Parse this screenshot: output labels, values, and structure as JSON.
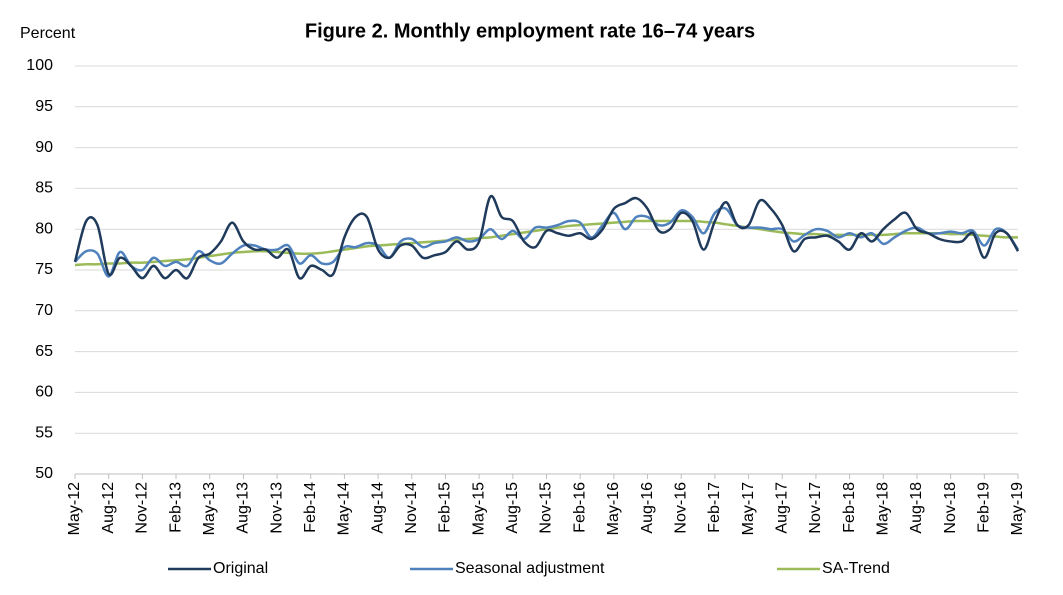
{
  "chart_data": {
    "type": "line",
    "title": "Figure 2. Monthly employment rate 16–74 years",
    "y_label": "Percent",
    "categories": [
      "May-12",
      null,
      null,
      "Aug-12",
      null,
      null,
      "Nov-12",
      null,
      null,
      "Feb-13",
      null,
      null,
      "May-13",
      null,
      null,
      "Aug-13",
      null,
      null,
      "Nov-13",
      null,
      null,
      "Feb-14",
      null,
      null,
      "May-14",
      null,
      null,
      "Aug-14",
      null,
      null,
      "Nov-14",
      null,
      null,
      "Feb-15",
      null,
      null,
      "May-15",
      null,
      null,
      "Aug-15",
      null,
      null,
      "Nov-15",
      null,
      null,
      "Feb-16",
      null,
      null,
      "May-16",
      null,
      null,
      "Aug-16",
      null,
      null,
      "Nov-16",
      null,
      null,
      "Feb-17",
      null,
      null,
      "May-17",
      null,
      null,
      "Aug-17",
      null,
      null,
      "Nov-17",
      null,
      null,
      "Feb-18",
      null,
      null,
      "May-18",
      null,
      null,
      "Aug-18",
      null,
      null,
      "Nov-18",
      null,
      null,
      "Feb-19",
      null,
      null,
      "May-19"
    ],
    "series": [
      {
        "name": "Original",
        "color": "#1f3a5a",
        "values": [
          76,
          81,
          80.5,
          74.5,
          76.5,
          75.5,
          74,
          75.5,
          74,
          75,
          74,
          76.5,
          77,
          78.5,
          80.8,
          78.5,
          77.5,
          77.5,
          76.5,
          77.5,
          74,
          75.5,
          75,
          74.5,
          79,
          81.5,
          81.5,
          77.5,
          76.5,
          78,
          78,
          76.5,
          76.8,
          77.2,
          78.5,
          77.5,
          78.5,
          84,
          81.5,
          81,
          78.5,
          77.8,
          79.8,
          79.5,
          79.2,
          79.5,
          78.8,
          80,
          82.5,
          83.2,
          83.8,
          82.5,
          79.8,
          80,
          82,
          81,
          77.5,
          81,
          83.3,
          80.5,
          80.5,
          83.5,
          82.5,
          80.5,
          77.3,
          78.8,
          79,
          79.2,
          78.5,
          77.5,
          79.5,
          78.5,
          80,
          81.2,
          82,
          80,
          79.5,
          78.8,
          78.5,
          78.5,
          79.5,
          76.5,
          79.5,
          79.5,
          77.3
        ]
      },
      {
        "name": "Seasonal adjustment",
        "color": "#4f81bd",
        "values": [
          76,
          77.3,
          77,
          74.2,
          77.2,
          75.5,
          75,
          76.5,
          75.5,
          76,
          75.5,
          77.3,
          76.2,
          75.8,
          77,
          78,
          78,
          77.5,
          77.5,
          78,
          75.8,
          76.8,
          75.8,
          76,
          77.8,
          77.8,
          78.3,
          78,
          76.5,
          78.5,
          78.8,
          77.8,
          78.3,
          78.5,
          79,
          78.5,
          78.8,
          80,
          78.8,
          79.8,
          78.8,
          80.2,
          80.2,
          80.5,
          81,
          80.8,
          79,
          80.5,
          82,
          80,
          81.5,
          81.5,
          80.5,
          80.8,
          82.3,
          81.5,
          79.5,
          82,
          82.5,
          80.5,
          80.2,
          80.2,
          80,
          80,
          78.5,
          79.3,
          80,
          79.8,
          79,
          79.5,
          79,
          79.5,
          78.2,
          79,
          79.8,
          80.2,
          79.5,
          79.5,
          79.7,
          79.5,
          79.8,
          78,
          80,
          79.5,
          77.5
        ]
      },
      {
        "name": "SA-Trend",
        "color": "#9bbb59",
        "values": [
          75.6,
          75.7,
          75.7,
          75.8,
          75.8,
          75.9,
          75.9,
          76,
          76.1,
          76.2,
          76.3,
          76.5,
          76.7,
          76.9,
          77.1,
          77.2,
          77.3,
          77.3,
          77.2,
          77.1,
          77,
          77,
          77.1,
          77.3,
          77.5,
          77.7,
          77.9,
          78,
          78.1,
          78.2,
          78.3,
          78.4,
          78.5,
          78.6,
          78.7,
          78.8,
          78.9,
          79,
          79.2,
          79.4,
          79.6,
          79.8,
          80,
          80.2,
          80.4,
          80.5,
          80.6,
          80.7,
          80.8,
          80.9,
          81,
          81,
          81,
          81,
          81,
          81,
          80.9,
          80.8,
          80.6,
          80.4,
          80.2,
          80,
          79.8,
          79.6,
          79.5,
          79.4,
          79.4,
          79.3,
          79.3,
          79.3,
          79.3,
          79.3,
          79.3,
          79.4,
          79.5,
          79.5,
          79.5,
          79.5,
          79.4,
          79.4,
          79.3,
          79.2,
          79.1,
          79,
          79
        ]
      }
    ],
    "ylim": [
      50,
      100
    ],
    "yticks": [
      50,
      55,
      60,
      65,
      70,
      75,
      80,
      85,
      90,
      95,
      100
    ],
    "grid": true,
    "legend": "bottom"
  }
}
